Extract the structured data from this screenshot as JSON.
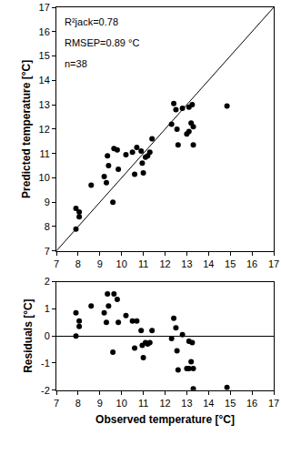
{
  "chart_data": [
    {
      "type": "scatter",
      "ylabel": "Predicted temperature [°C]",
      "annotations": [
        "R²jack=0.78",
        "RMSEP=0.89 °C",
        "n=38"
      ],
      "color": "#000000",
      "marker": "circle",
      "grid": false,
      "xlim": [
        7,
        17
      ],
      "ylim": [
        7,
        17
      ],
      "xticks": [
        7,
        8,
        9,
        10,
        11,
        12,
        13,
        14,
        15,
        16,
        17
      ],
      "yticks": [
        7,
        8,
        9,
        10,
        11,
        12,
        13,
        14,
        15,
        16,
        17
      ],
      "x": [
        7.9,
        7.9,
        8.05,
        8.05,
        8.6,
        9.2,
        9.3,
        9.35,
        9.4,
        9.6,
        9.65,
        9.8,
        9.85,
        10.2,
        10.5,
        10.6,
        10.7,
        10.9,
        10.95,
        11.0,
        11.1,
        11.2,
        11.3,
        11.4,
        12.3,
        12.4,
        12.5,
        12.55,
        12.6,
        12.8,
        13.0,
        13.1,
        13.1,
        13.2,
        13.25,
        13.3,
        13.3,
        14.85
      ],
      "values": [
        8.75,
        7.9,
        8.6,
        8.4,
        9.7,
        10.05,
        9.8,
        10.9,
        10.5,
        9.0,
        11.2,
        11.15,
        10.35,
        10.95,
        11.05,
        10.15,
        11.25,
        11.1,
        10.6,
        10.2,
        10.85,
        10.9,
        11.05,
        11.6,
        12.2,
        13.05,
        12.8,
        12.0,
        11.35,
        12.85,
        11.8,
        12.9,
        11.9,
        12.25,
        13.0,
        12.1,
        11.35,
        12.95
      ]
    },
    {
      "type": "scatter",
      "xlabel": "Observed temperature [°C]",
      "ylabel": "Residuals [°C]",
      "color": "#000000",
      "marker": "circle",
      "grid": false,
      "xlim": [
        7,
        17
      ],
      "ylim": [
        -2,
        2
      ],
      "xticks": [
        7,
        8,
        9,
        10,
        11,
        12,
        13,
        14,
        15,
        16,
        17
      ],
      "yticks": [
        -2,
        -1,
        0,
        1,
        2
      ],
      "x": [
        7.9,
        7.9,
        8.05,
        8.05,
        8.6,
        9.2,
        9.3,
        9.35,
        9.4,
        9.6,
        9.65,
        9.8,
        9.85,
        10.2,
        10.5,
        10.6,
        10.7,
        10.9,
        10.95,
        11.0,
        11.1,
        11.2,
        11.3,
        11.4,
        12.3,
        12.4,
        12.5,
        12.55,
        12.6,
        12.8,
        13.0,
        13.1,
        13.1,
        13.2,
        13.25,
        13.3,
        13.3,
        14.85
      ],
      "values": [
        0.85,
        0,
        0.55,
        0.35,
        1.1,
        0.85,
        0.5,
        1.55,
        1.1,
        -0.6,
        1.55,
        1.35,
        0.5,
        0.75,
        0.55,
        -0.45,
        0.55,
        0.2,
        -0.35,
        -0.8,
        -0.25,
        -0.3,
        -0.25,
        0.2,
        -0.1,
        0.65,
        0.3,
        -0.55,
        -1.25,
        0.05,
        -1.2,
        -0.2,
        -1.2,
        -0.95,
        -0.25,
        -1.2,
        -1.95,
        -1.9
      ]
    }
  ]
}
